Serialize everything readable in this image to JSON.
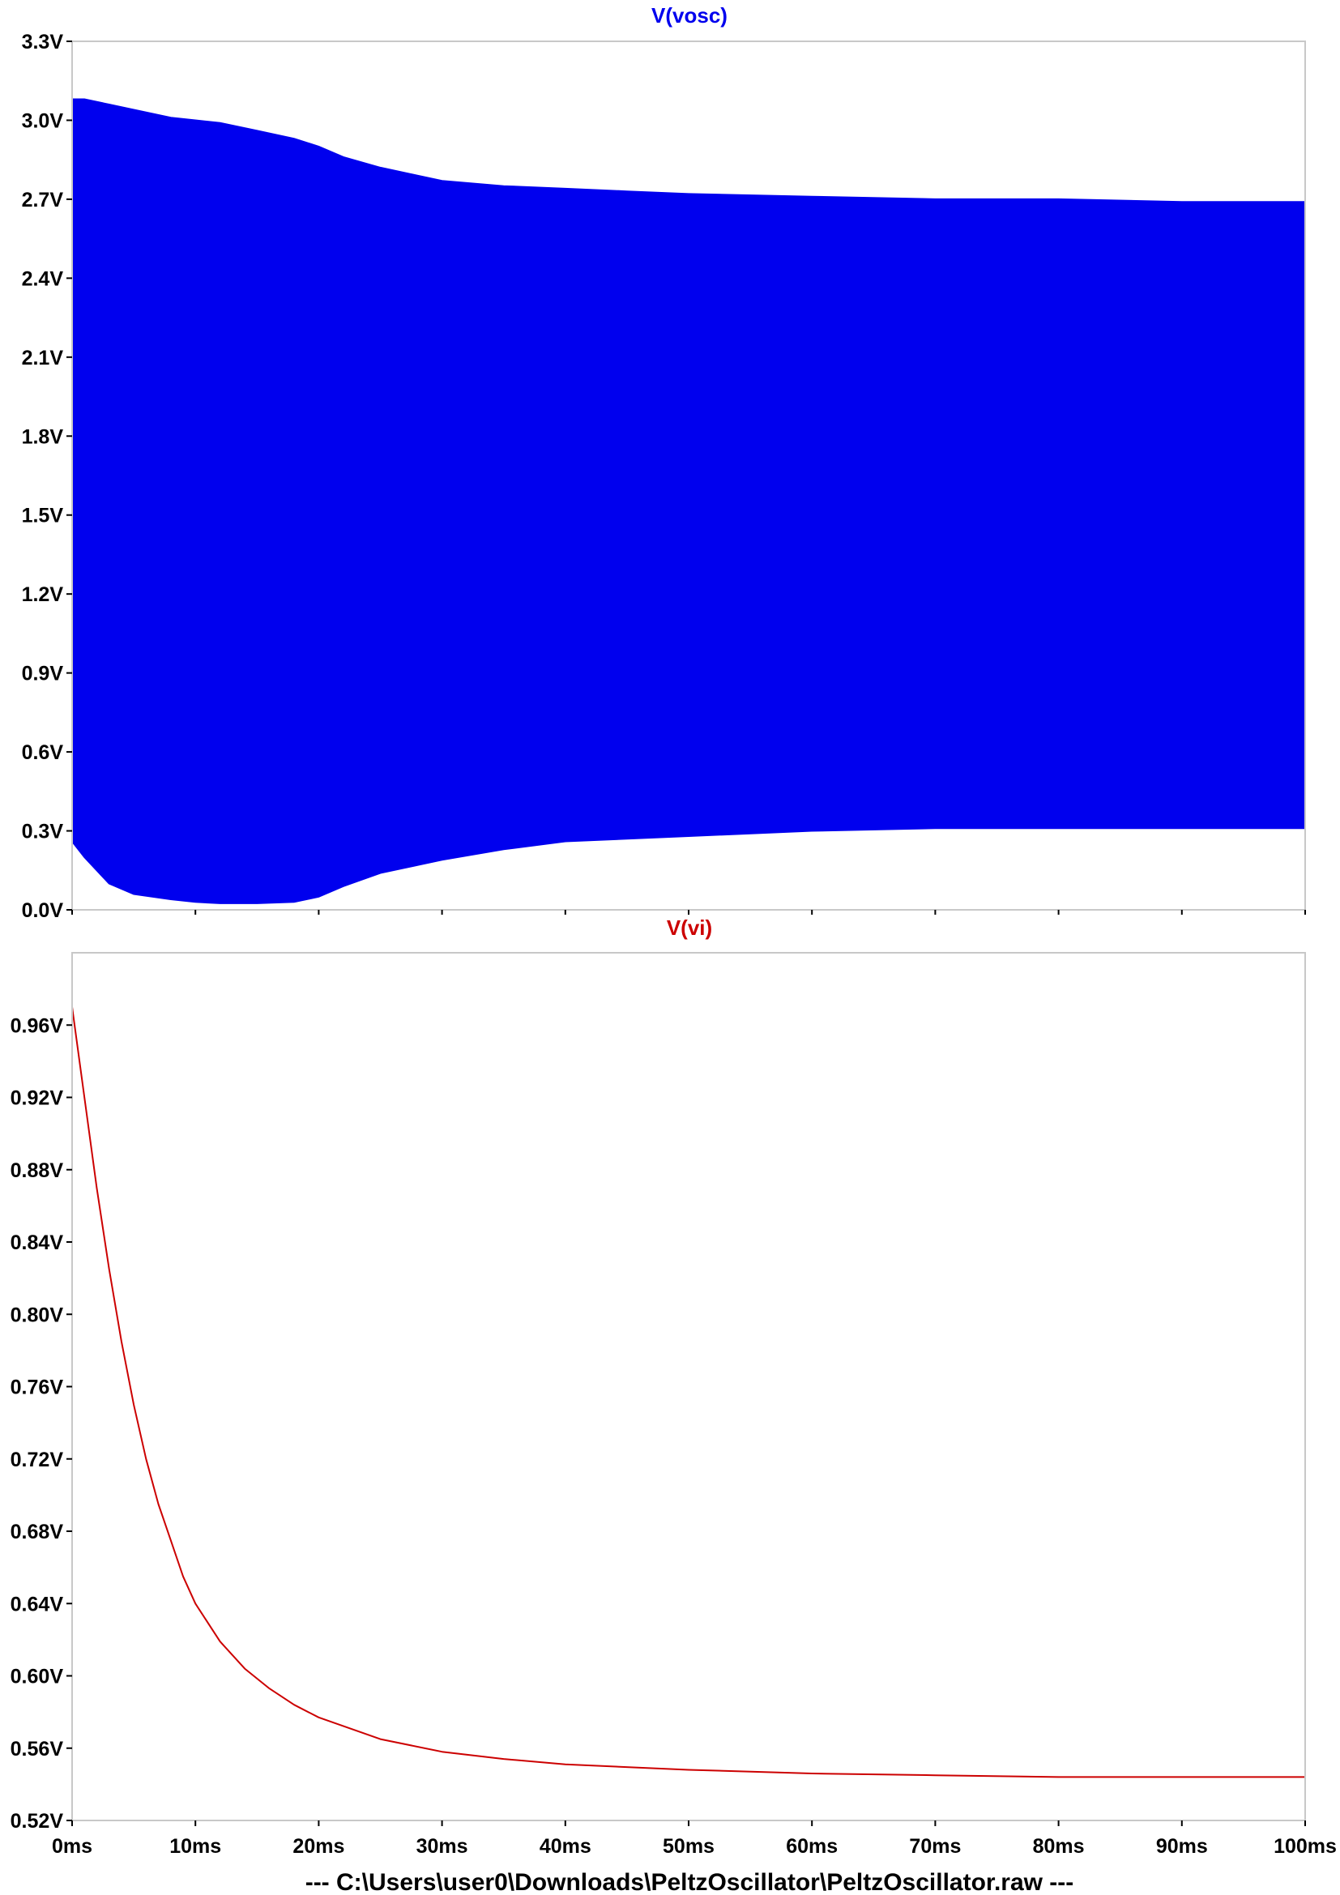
{
  "chart_data": [
    {
      "type": "area",
      "title": "V(vosc)",
      "color": "#0000ee",
      "x_unit": "ms",
      "y_unit": "V",
      "xlim": [
        0,
        100
      ],
      "ylim": [
        0,
        3.3
      ],
      "y_ticks": [
        0.0,
        0.3,
        0.6,
        0.9,
        1.2,
        1.5,
        1.8,
        2.1,
        2.4,
        2.7,
        3.0,
        3.3
      ],
      "y_tick_labels": [
        "0.0V",
        "0.3V",
        "0.6V",
        "0.9V",
        "1.2V",
        "1.5V",
        "1.8V",
        "2.1V",
        "2.4V",
        "2.7V",
        "3.0V",
        "3.3V"
      ],
      "series": [
        {
          "x": [
            0,
            1,
            3,
            5,
            8,
            10,
            12,
            15,
            18,
            20,
            22,
            25,
            28,
            30,
            35,
            40,
            45,
            50,
            60,
            70,
            80,
            90,
            100
          ],
          "upper": [
            3.08,
            3.08,
            3.06,
            3.04,
            3.01,
            3.0,
            2.99,
            2.96,
            2.93,
            2.9,
            2.86,
            2.82,
            2.79,
            2.77,
            2.75,
            2.74,
            2.73,
            2.72,
            2.71,
            2.7,
            2.7,
            2.69,
            2.69
          ],
          "lower": [
            0.26,
            0.2,
            0.1,
            0.06,
            0.04,
            0.03,
            0.025,
            0.025,
            0.03,
            0.05,
            0.09,
            0.14,
            0.17,
            0.19,
            0.23,
            0.26,
            0.27,
            0.28,
            0.3,
            0.31,
            0.31,
            0.31,
            0.31
          ]
        }
      ]
    },
    {
      "type": "line",
      "title": "V(vi)",
      "color": "#cc0000",
      "x_unit": "ms",
      "y_unit": "V",
      "xlim": [
        0,
        100
      ],
      "ylim": [
        0.52,
        1.0
      ],
      "y_ticks": [
        0.52,
        0.56,
        0.6,
        0.64,
        0.68,
        0.72,
        0.76,
        0.8,
        0.84,
        0.88,
        0.92,
        0.96
      ],
      "y_tick_labels": [
        "0.52V",
        "0.56V",
        "0.60V",
        "0.64V",
        "0.68V",
        "0.72V",
        "0.76V",
        "0.80V",
        "0.84V",
        "0.88V",
        "0.92V",
        "0.96V"
      ],
      "series": [
        {
          "x": [
            0,
            1,
            2,
            3,
            4,
            5,
            6,
            7,
            8,
            9,
            10,
            12,
            14,
            16,
            18,
            20,
            25,
            30,
            35,
            40,
            50,
            60,
            70,
            80,
            90,
            100
          ],
          "y": [
            0.97,
            0.92,
            0.87,
            0.825,
            0.785,
            0.75,
            0.72,
            0.695,
            0.675,
            0.655,
            0.64,
            0.619,
            0.604,
            0.593,
            0.584,
            0.577,
            0.565,
            0.558,
            0.554,
            0.551,
            0.548,
            0.546,
            0.545,
            0.544,
            0.544,
            0.544
          ]
        }
      ]
    }
  ],
  "x_axis": {
    "ticks": [
      0,
      10,
      20,
      30,
      40,
      50,
      60,
      70,
      80,
      90,
      100
    ],
    "tick_labels": [
      "0ms",
      "10ms",
      "20ms",
      "30ms",
      "40ms",
      "50ms",
      "60ms",
      "70ms",
      "80ms",
      "90ms",
      "100ms"
    ]
  },
  "footer": "---  C:\\Users\\user0\\Downloads\\PeltzOscillator\\PeltzOscillator.raw  ---"
}
